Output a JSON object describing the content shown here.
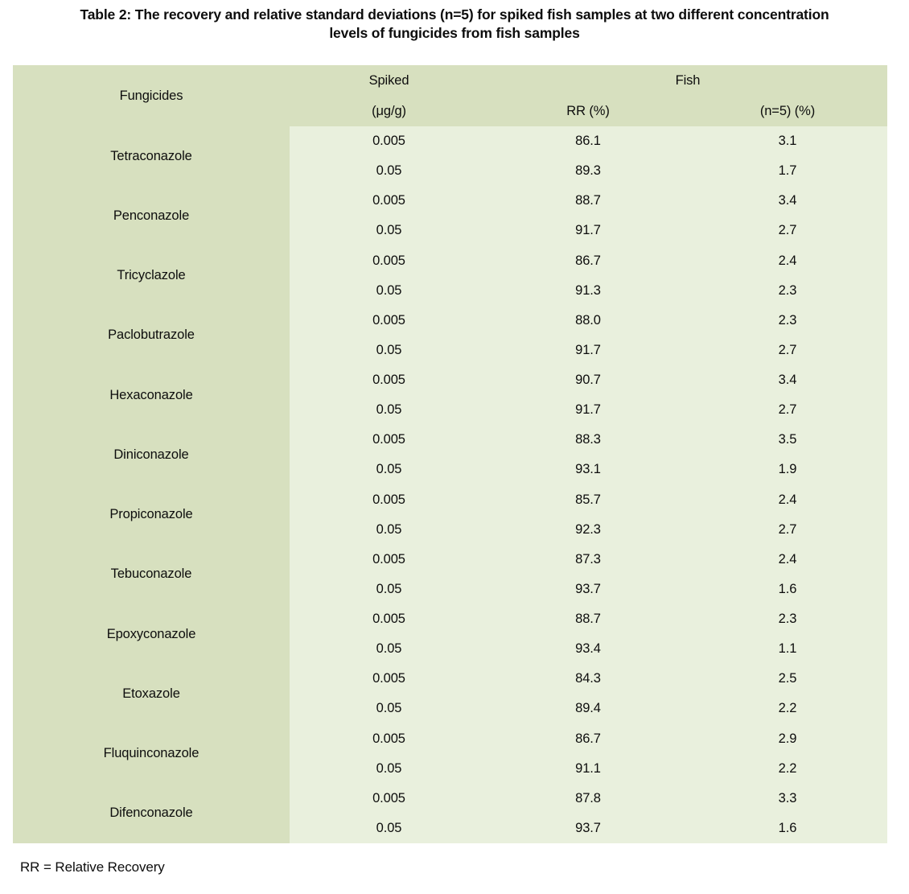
{
  "page_title": {
    "line1": "Table 2: The recovery and relative standard deviations (n=5) for spiked fish samples at two different concentration",
    "line2": "levels of fungicides from fish samples"
  },
  "table": {
    "columns": {
      "fungicides": "Fungicides",
      "spiked": "Spiked",
      "spiked_unit": "(μg/g)",
      "sample_group": "Fish",
      "rr": "RR (%)",
      "rsd": "(n=5) (%)"
    },
    "rows": [
      {
        "fungicide": "Tetraconazole",
        "levels": [
          {
            "spiked": "0.005",
            "rr": "86.1",
            "rsd": "3.1"
          },
          {
            "spiked": "0.05",
            "rr": "89.3",
            "rsd": "1.7"
          }
        ]
      },
      {
        "fungicide": "Penconazole",
        "levels": [
          {
            "spiked": "0.005",
            "rr": "88.7",
            "rsd": "3.4"
          },
          {
            "spiked": "0.05",
            "rr": "91.7",
            "rsd": "2.7"
          }
        ]
      },
      {
        "fungicide": "Tricyclazole",
        "levels": [
          {
            "spiked": "0.005",
            "rr": "86.7",
            "rsd": "2.4"
          },
          {
            "spiked": "0.05",
            "rr": "91.3",
            "rsd": "2.3"
          }
        ]
      },
      {
        "fungicide": "Paclobutrazole",
        "levels": [
          {
            "spiked": "0.005",
            "rr": "88.0",
            "rsd": "2.3"
          },
          {
            "spiked": "0.05",
            "rr": "91.7",
            "rsd": "2.7"
          }
        ]
      },
      {
        "fungicide": "Hexaconazole",
        "levels": [
          {
            "spiked": "0.005",
            "rr": "90.7",
            "rsd": "3.4"
          },
          {
            "spiked": "0.05",
            "rr": "91.7",
            "rsd": "2.7"
          }
        ]
      },
      {
        "fungicide": "Diniconazole",
        "levels": [
          {
            "spiked": "0.005",
            "rr": "88.3",
            "rsd": "3.5"
          },
          {
            "spiked": "0.05",
            "rr": "93.1",
            "rsd": "1.9"
          }
        ]
      },
      {
        "fungicide": "Propiconazole",
        "levels": [
          {
            "spiked": "0.005",
            "rr": "85.7",
            "rsd": "2.4"
          },
          {
            "spiked": "0.05",
            "rr": "92.3",
            "rsd": "2.7"
          }
        ]
      },
      {
        "fungicide": "Tebuconazole",
        "levels": [
          {
            "spiked": "0.005",
            "rr": "87.3",
            "rsd": "2.4"
          },
          {
            "spiked": "0.05",
            "rr": "93.7",
            "rsd": "1.6"
          }
        ]
      },
      {
        "fungicide": "Epoxyconazole",
        "levels": [
          {
            "spiked": "0.005",
            "rr": "88.7",
            "rsd": "2.3"
          },
          {
            "spiked": "0.05",
            "rr": "93.4",
            "rsd": "1.1"
          }
        ]
      },
      {
        "fungicide": "Etoxazole",
        "levels": [
          {
            "spiked": "0.005",
            "rr": "84.3",
            "rsd": "2.5"
          },
          {
            "spiked": "0.05",
            "rr": "89.4",
            "rsd": "2.2"
          }
        ]
      },
      {
        "fungicide": "Fluquinconazole",
        "levels": [
          {
            "spiked": "0.005",
            "rr": "86.7",
            "rsd": "2.9"
          },
          {
            "spiked": "0.05",
            "rr": "91.1",
            "rsd": "2.2"
          }
        ]
      },
      {
        "fungicide": "Difenconazole",
        "levels": [
          {
            "spiked": "0.005",
            "rr": "87.8",
            "rsd": "3.3"
          },
          {
            "spiked": "0.05",
            "rr": "93.7",
            "rsd": "1.6"
          }
        ]
      }
    ]
  },
  "footnote": "RR = Relative Recovery",
  "colors": {
    "header_bg": "#d7e0bf",
    "body_bg": "#e9f0dd",
    "page_bg": "#ffffff",
    "text": "#0d0d0d"
  }
}
